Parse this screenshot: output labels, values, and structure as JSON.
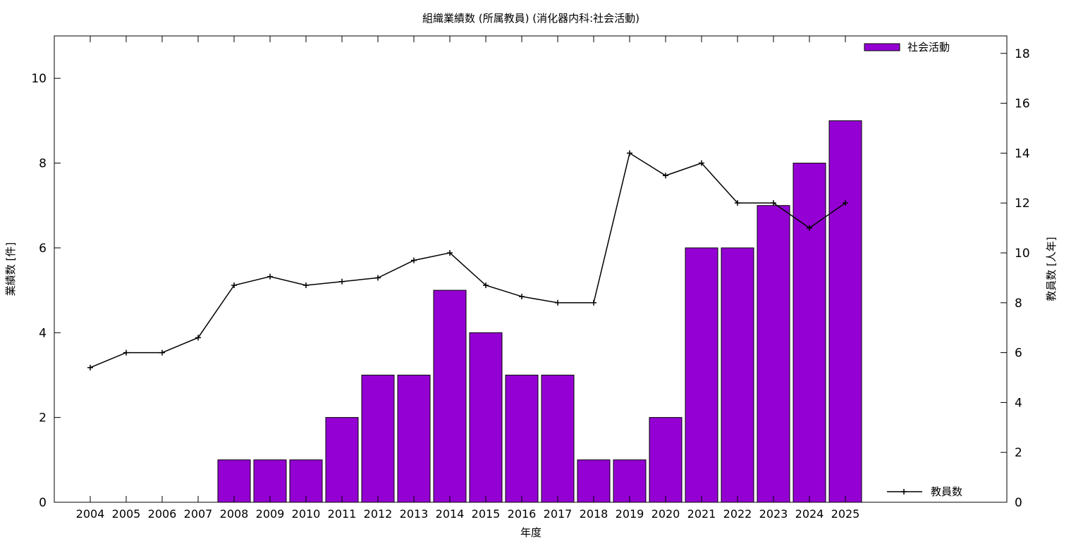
{
  "chart_data": {
    "type": "bar",
    "title": "組織業績数 (所属教員) (消化器内科:社会活動)",
    "xlabel": "年度",
    "ylabel": "業績数 [件]",
    "y2label": "教員数 [人年]",
    "categories": [
      "2004",
      "2005",
      "2006",
      "2007",
      "2008",
      "2009",
      "2010",
      "2011",
      "2012",
      "2013",
      "2014",
      "2015",
      "2016",
      "2017",
      "2018",
      "2019",
      "2020",
      "2021",
      "2022",
      "2023",
      "2024",
      "2025"
    ],
    "series": [
      {
        "name": "社会活動",
        "type": "bar",
        "axis": "left",
        "color": "#9400d3",
        "values": [
          0,
          0,
          0,
          0,
          1,
          1,
          1,
          2,
          3,
          3,
          5,
          4,
          3,
          3,
          1,
          1,
          2,
          6,
          6,
          7,
          8,
          9
        ]
      },
      {
        "name": "教員数",
        "type": "line",
        "axis": "right",
        "color": "#000000",
        "marker": "plus",
        "values": [
          5.4,
          6.0,
          6.0,
          6.6,
          8.7,
          9.05,
          8.7,
          8.85,
          9.0,
          9.7,
          10.0,
          8.7,
          8.25,
          8.0,
          8.0,
          14.0,
          13.1,
          13.6,
          12.0,
          12.0,
          11.0,
          12.0
        ]
      }
    ],
    "ylim": [
      0,
      11
    ],
    "yticks": [
      0,
      2,
      4,
      6,
      8,
      10
    ],
    "y2lim": [
      0,
      18.7
    ],
    "y2ticks": [
      0,
      2,
      4,
      6,
      8,
      10,
      12,
      14,
      16,
      18
    ],
    "legend_position": "top-right (bars), bottom-right (line)",
    "grid": false
  }
}
